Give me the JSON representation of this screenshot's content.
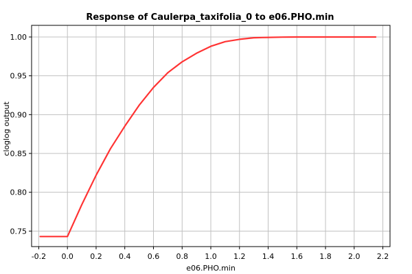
{
  "chart_data": {
    "type": "line",
    "title": "Response of Caulerpa_taxifolia_0 to e06.PHO.min",
    "xlabel": "e06.PHO.min",
    "ylabel": "cloglog output",
    "xlim": [
      -0.25,
      2.25
    ],
    "ylim": [
      0.73,
      1.015
    ],
    "grid": true,
    "x_ticks": [
      -0.2,
      0.0,
      0.2,
      0.4,
      0.6,
      0.8,
      1.0,
      1.2,
      1.4,
      1.6,
      1.8,
      2.0,
      2.2
    ],
    "x_tick_labels": [
      "-0.2",
      "0.0",
      "0.2",
      "0.4",
      "0.6",
      "0.8",
      "1.0",
      "1.2",
      "1.4",
      "1.6",
      "1.8",
      "2.0",
      "2.2"
    ],
    "y_ticks": [
      0.75,
      0.8,
      0.85,
      0.9,
      0.95,
      1.0
    ],
    "y_tick_labels": [
      "0.75",
      "0.80",
      "0.85",
      "0.90",
      "0.95",
      "1.00"
    ],
    "color": "#ff3333",
    "series": [
      {
        "x": [
          -0.19,
          0.0,
          0.1,
          0.2,
          0.3,
          0.4,
          0.5,
          0.6,
          0.7,
          0.8,
          0.9,
          1.0,
          1.1,
          1.2,
          1.3,
          1.4,
          1.5,
          1.6,
          1.8,
          2.0,
          2.15
        ],
        "values": [
          0.743,
          0.743,
          0.784,
          0.822,
          0.856,
          0.885,
          0.912,
          0.935,
          0.954,
          0.968,
          0.979,
          0.988,
          0.994,
          0.997,
          0.999,
          0.9995,
          0.9998,
          1.0,
          1.0,
          1.0,
          1.0
        ]
      }
    ]
  }
}
